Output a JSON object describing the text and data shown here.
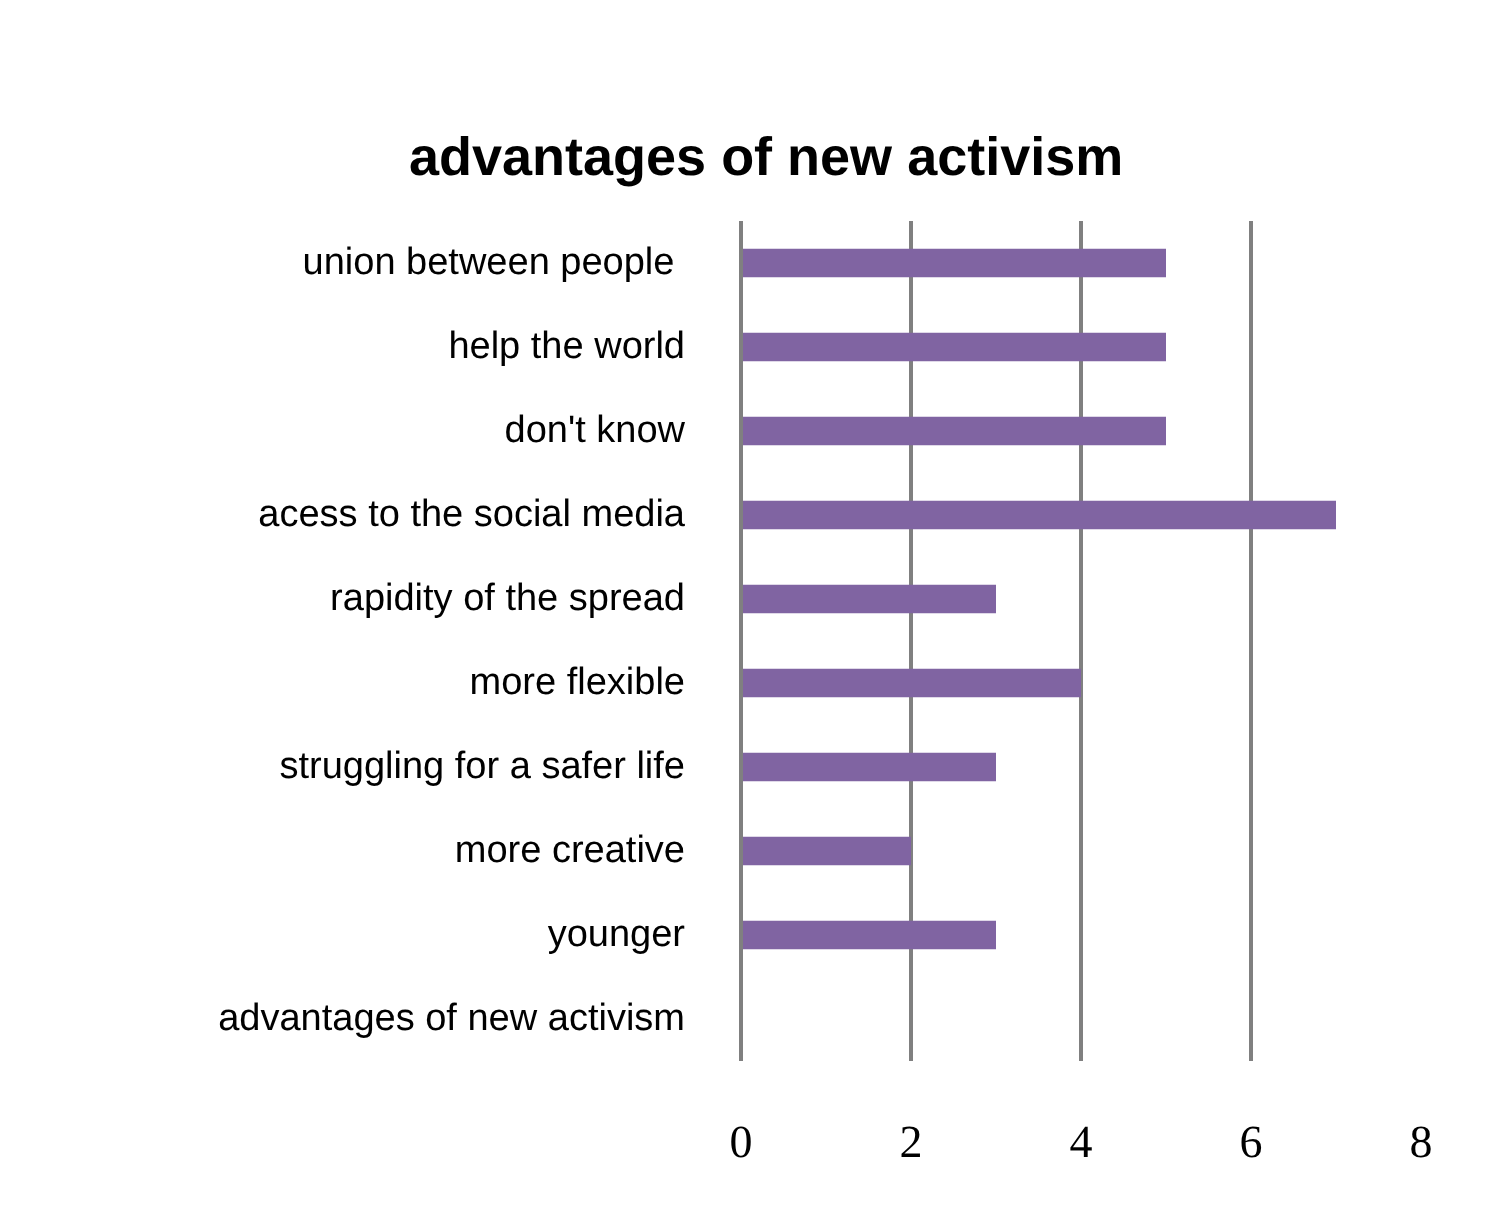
{
  "chart_data": {
    "type": "bar",
    "orientation": "horizontal",
    "title": "advantages of new activism",
    "categories": [
      "union between  people",
      "help the world",
      "don't know",
      "acess to the social media",
      "rapidity of the spread",
      "more flexible",
      "struggling for a safer life",
      "more creative",
      "younger",
      "advantages of new activism"
    ],
    "values": [
      5,
      5,
      5,
      7,
      3,
      4,
      3,
      2,
      3,
      null
    ],
    "color": "#8064a2",
    "xlim": [
      0,
      8
    ],
    "xticks": [
      0,
      2,
      4,
      6,
      8
    ],
    "grid": "x"
  }
}
